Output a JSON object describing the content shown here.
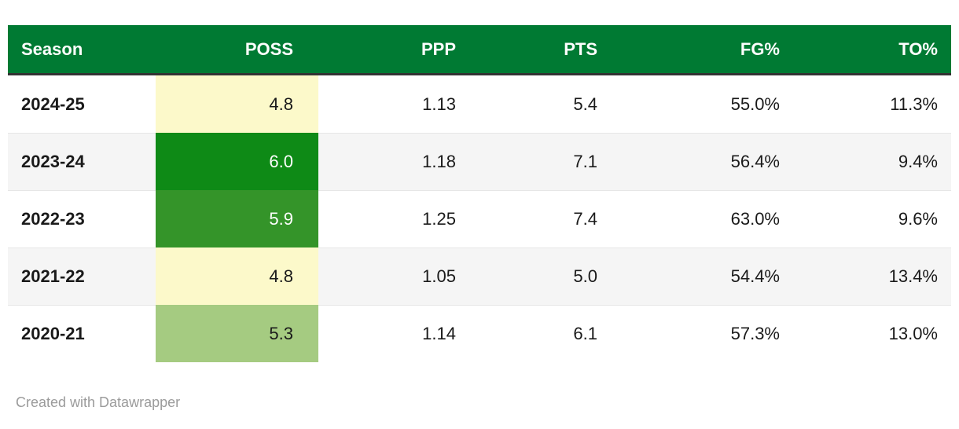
{
  "colors": {
    "header_bg": "#007a33",
    "header_text": "#ffffff",
    "header_border": "#333333",
    "row_alt_bg": "#f5f5f5",
    "row_divider": "#e6e6e6",
    "text": "#1a1a1a",
    "footer_text": "#9b9b9b",
    "page_bg": "#ffffff",
    "heat_high": "#0e8a16",
    "heat_mid_high": "#349429",
    "heat_mid": "#a5cb81",
    "heat_low": "#fcf9ca"
  },
  "table": {
    "columns": {
      "season": "Season",
      "poss": "POSS",
      "ppp": "PPP",
      "pts": "PTS",
      "fg": "FG%",
      "to": "TO%"
    },
    "rows": [
      {
        "season": "2024-25",
        "poss": "4.8",
        "ppp": "1.13",
        "pts": "5.4",
        "fg": "55.0%",
        "to": "11.3%",
        "poss_bg": "#fcf9ca",
        "poss_color": "#1a1a1a"
      },
      {
        "season": "2023-24",
        "poss": "6.0",
        "ppp": "1.18",
        "pts": "7.1",
        "fg": "56.4%",
        "to": "9.4%",
        "poss_bg": "#0e8a16",
        "poss_color": "#ffffff"
      },
      {
        "season": "2022-23",
        "poss": "5.9",
        "ppp": "1.25",
        "pts": "7.4",
        "fg": "63.0%",
        "to": "9.6%",
        "poss_bg": "#349429",
        "poss_color": "#ffffff"
      },
      {
        "season": "2021-22",
        "poss": "4.8",
        "ppp": "1.05",
        "pts": "5.0",
        "fg": "54.4%",
        "to": "13.4%",
        "poss_bg": "#fcf9ca",
        "poss_color": "#1a1a1a"
      },
      {
        "season": "2020-21",
        "poss": "5.3",
        "ppp": "1.14",
        "pts": "6.1",
        "fg": "57.3%",
        "to": "13.0%",
        "poss_bg": "#a5cb81",
        "poss_color": "#1a1a1a"
      }
    ]
  },
  "footer": {
    "credit": "Created with Datawrapper"
  },
  "chart_data": {
    "type": "table",
    "columns": [
      "Season",
      "POSS",
      "PPP",
      "PTS",
      "FG%",
      "TO%"
    ],
    "rows": [
      [
        "2024-25",
        4.8,
        1.13,
        5.4,
        "55.0%",
        "11.3%"
      ],
      [
        "2023-24",
        6.0,
        1.18,
        7.1,
        "56.4%",
        "9.4%"
      ],
      [
        "2022-23",
        5.9,
        1.25,
        7.4,
        "63.0%",
        "9.6%"
      ],
      [
        "2021-22",
        4.8,
        1.05,
        5.0,
        "54.4%",
        "13.4%"
      ],
      [
        "2020-21",
        5.3,
        1.14,
        6.1,
        "57.3%",
        "13.0%"
      ]
    ],
    "heatmap_column": "POSS",
    "heatmap_scale": {
      "min_color": "#fcf9ca",
      "max_color": "#0e8a16",
      "min_value": 4.8,
      "max_value": 6.0
    },
    "title": "",
    "footer": "Created with Datawrapper"
  }
}
